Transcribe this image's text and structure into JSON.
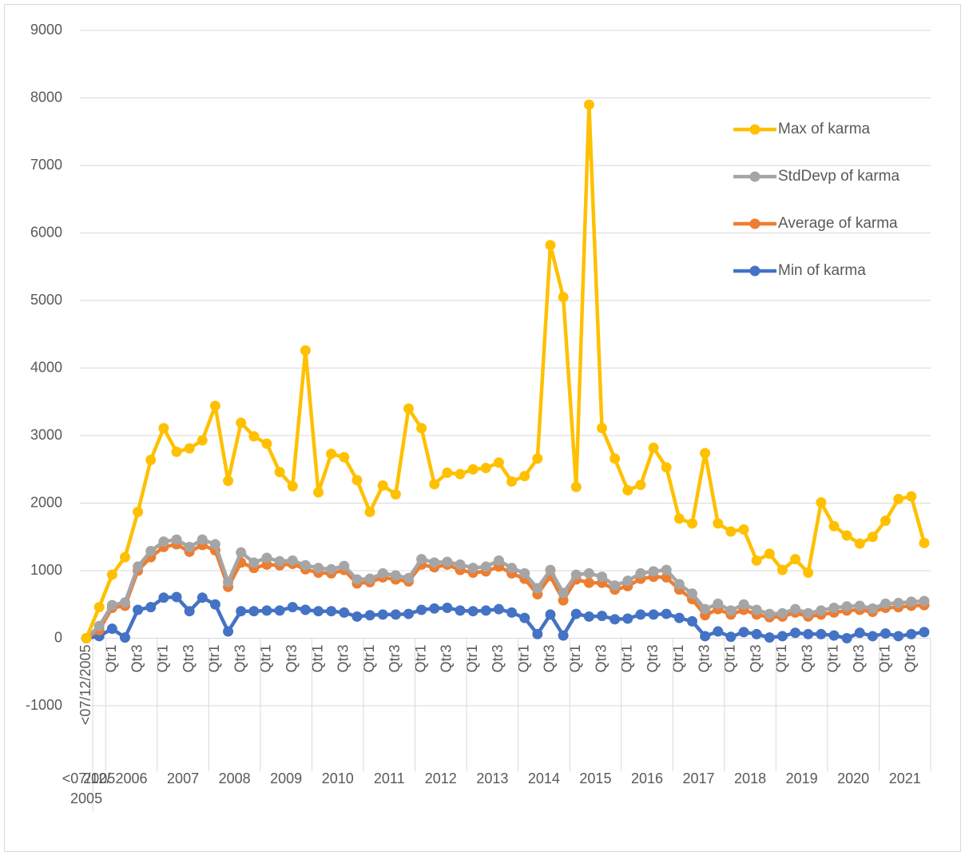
{
  "chart_data": {
    "type": "line",
    "categories": [
      "<07/12/2005",
      null,
      "Qtr1",
      null,
      "Qtr3",
      null,
      "Qtr1",
      null,
      "Qtr3",
      null,
      "Qtr1",
      null,
      "Qtr3",
      null,
      "Qtr1",
      null,
      "Qtr3",
      null,
      "Qtr1",
      null,
      "Qtr3",
      null,
      "Qtr1",
      null,
      "Qtr3",
      null,
      "Qtr1",
      null,
      "Qtr3",
      null,
      "Qtr1",
      null,
      "Qtr3",
      null,
      "Qtr1",
      null,
      "Qtr3",
      null,
      "Qtr1",
      null,
      "Qtr3",
      null,
      "Qtr1",
      null,
      "Qtr3",
      null,
      "Qtr1",
      null,
      "Qtr3",
      null,
      "Qtr1",
      null,
      "Qtr3",
      null,
      "Qtr1",
      null,
      "Qtr3",
      null,
      "Qtr1",
      null,
      "Qtr3",
      null,
      "Qtr1",
      null,
      "Qtr3",
      null
    ],
    "x_groups": [
      "<07/12/2005",
      "2005",
      "2006",
      "2006",
      "2006",
      "2006",
      "2007",
      "2007",
      "2007",
      "2007",
      "2008",
      "2008",
      "2008",
      "2008",
      "2009",
      "2009",
      "2009",
      "2009",
      "2010",
      "2010",
      "2010",
      "2010",
      "2011",
      "2011",
      "2011",
      "2011",
      "2012",
      "2012",
      "2012",
      "2012",
      "2013",
      "2013",
      "2013",
      "2013",
      "2014",
      "2014",
      "2014",
      "2014",
      "2015",
      "2015",
      "2015",
      "2015",
      "2016",
      "2016",
      "2016",
      "2016",
      "2017",
      "2017",
      "2017",
      "2017",
      "2018",
      "2018",
      "2018",
      "2018",
      "2019",
      "2019",
      "2019",
      "2019",
      "2020",
      "2020",
      "2020",
      "2020",
      "2021",
      "2021",
      "2021",
      "2021"
    ],
    "series": [
      {
        "name": "Max of karma",
        "color": "#ffc000",
        "values": [
          0,
          460,
          940,
          1200,
          1870,
          2640,
          3110,
          2760,
          2810,
          2930,
          3440,
          2330,
          3190,
          2990,
          2880,
          2460,
          2250,
          4260,
          2160,
          2730,
          2680,
          2340,
          1870,
          2260,
          2130,
          3400,
          3110,
          2280,
          2450,
          2430,
          2500,
          2520,
          2600,
          2320,
          2400,
          2660,
          5820,
          5050,
          2240,
          7900,
          3110,
          2660,
          2190,
          2270,
          2820,
          2530,
          1770,
          1700,
          2740,
          1700,
          1580,
          1610,
          1150,
          1250,
          1010,
          1170,
          970,
          2010,
          1660,
          1520,
          1400,
          1500,
          1740,
          2060,
          2100,
          1410
        ]
      },
      {
        "name": "StdDevp of karma",
        "color": "#a5a5a5",
        "values": [
          0,
          180,
          490,
          530,
          1060,
          1290,
          1430,
          1460,
          1350,
          1460,
          1390,
          830,
          1270,
          1120,
          1190,
          1140,
          1150,
          1080,
          1040,
          1020,
          1070,
          870,
          880,
          960,
          930,
          890,
          1170,
          1120,
          1130,
          1090,
          1040,
          1060,
          1150,
          1040,
          960,
          740,
          1010,
          670,
          940,
          960,
          910,
          780,
          850,
          960,
          990,
          1010,
          800,
          660,
          430,
          510,
          410,
          500,
          420,
          360,
          370,
          430,
          370,
          410,
          450,
          470,
          480,
          440,
          510,
          520,
          540,
          550
        ]
      },
      {
        "name": "Average of karma",
        "color": "#ed7d31",
        "values": [
          0,
          120,
          450,
          480,
          1000,
          1200,
          1350,
          1390,
          1280,
          1380,
          1300,
          760,
          1120,
          1040,
          1090,
          1080,
          1100,
          1020,
          970,
          960,
          1010,
          810,
          830,
          900,
          870,
          840,
          1090,
          1050,
          1090,
          1010,
          970,
          990,
          1060,
          960,
          880,
          650,
          920,
          560,
          870,
          820,
          820,
          720,
          770,
          880,
          910,
          900,
          720,
          580,
          340,
          430,
          350,
          420,
          350,
          310,
          320,
          380,
          320,
          350,
          380,
          410,
          420,
          390,
          450,
          460,
          480,
          490
        ]
      },
      {
        "name": "Min of karma",
        "color": "#4472c4",
        "values": [
          0,
          30,
          140,
          10,
          420,
          460,
          600,
          610,
          400,
          600,
          500,
          100,
          400,
          400,
          410,
          410,
          460,
          420,
          400,
          400,
          380,
          320,
          340,
          350,
          350,
          360,
          420,
          440,
          450,
          410,
          400,
          410,
          430,
          380,
          300,
          60,
          350,
          40,
          360,
          320,
          330,
          280,
          290,
          350,
          350,
          360,
          300,
          250,
          30,
          100,
          20,
          90,
          60,
          10,
          30,
          80,
          60,
          60,
          40,
          0,
          80,
          30,
          70,
          30,
          60,
          90
        ]
      }
    ],
    "ylim": [
      -1000,
      9000
    ],
    "yticks": [
      -1000,
      0,
      1000,
      2000,
      3000,
      4000,
      5000,
      6000,
      7000,
      8000,
      9000
    ],
    "grid": true,
    "legend": "right"
  }
}
